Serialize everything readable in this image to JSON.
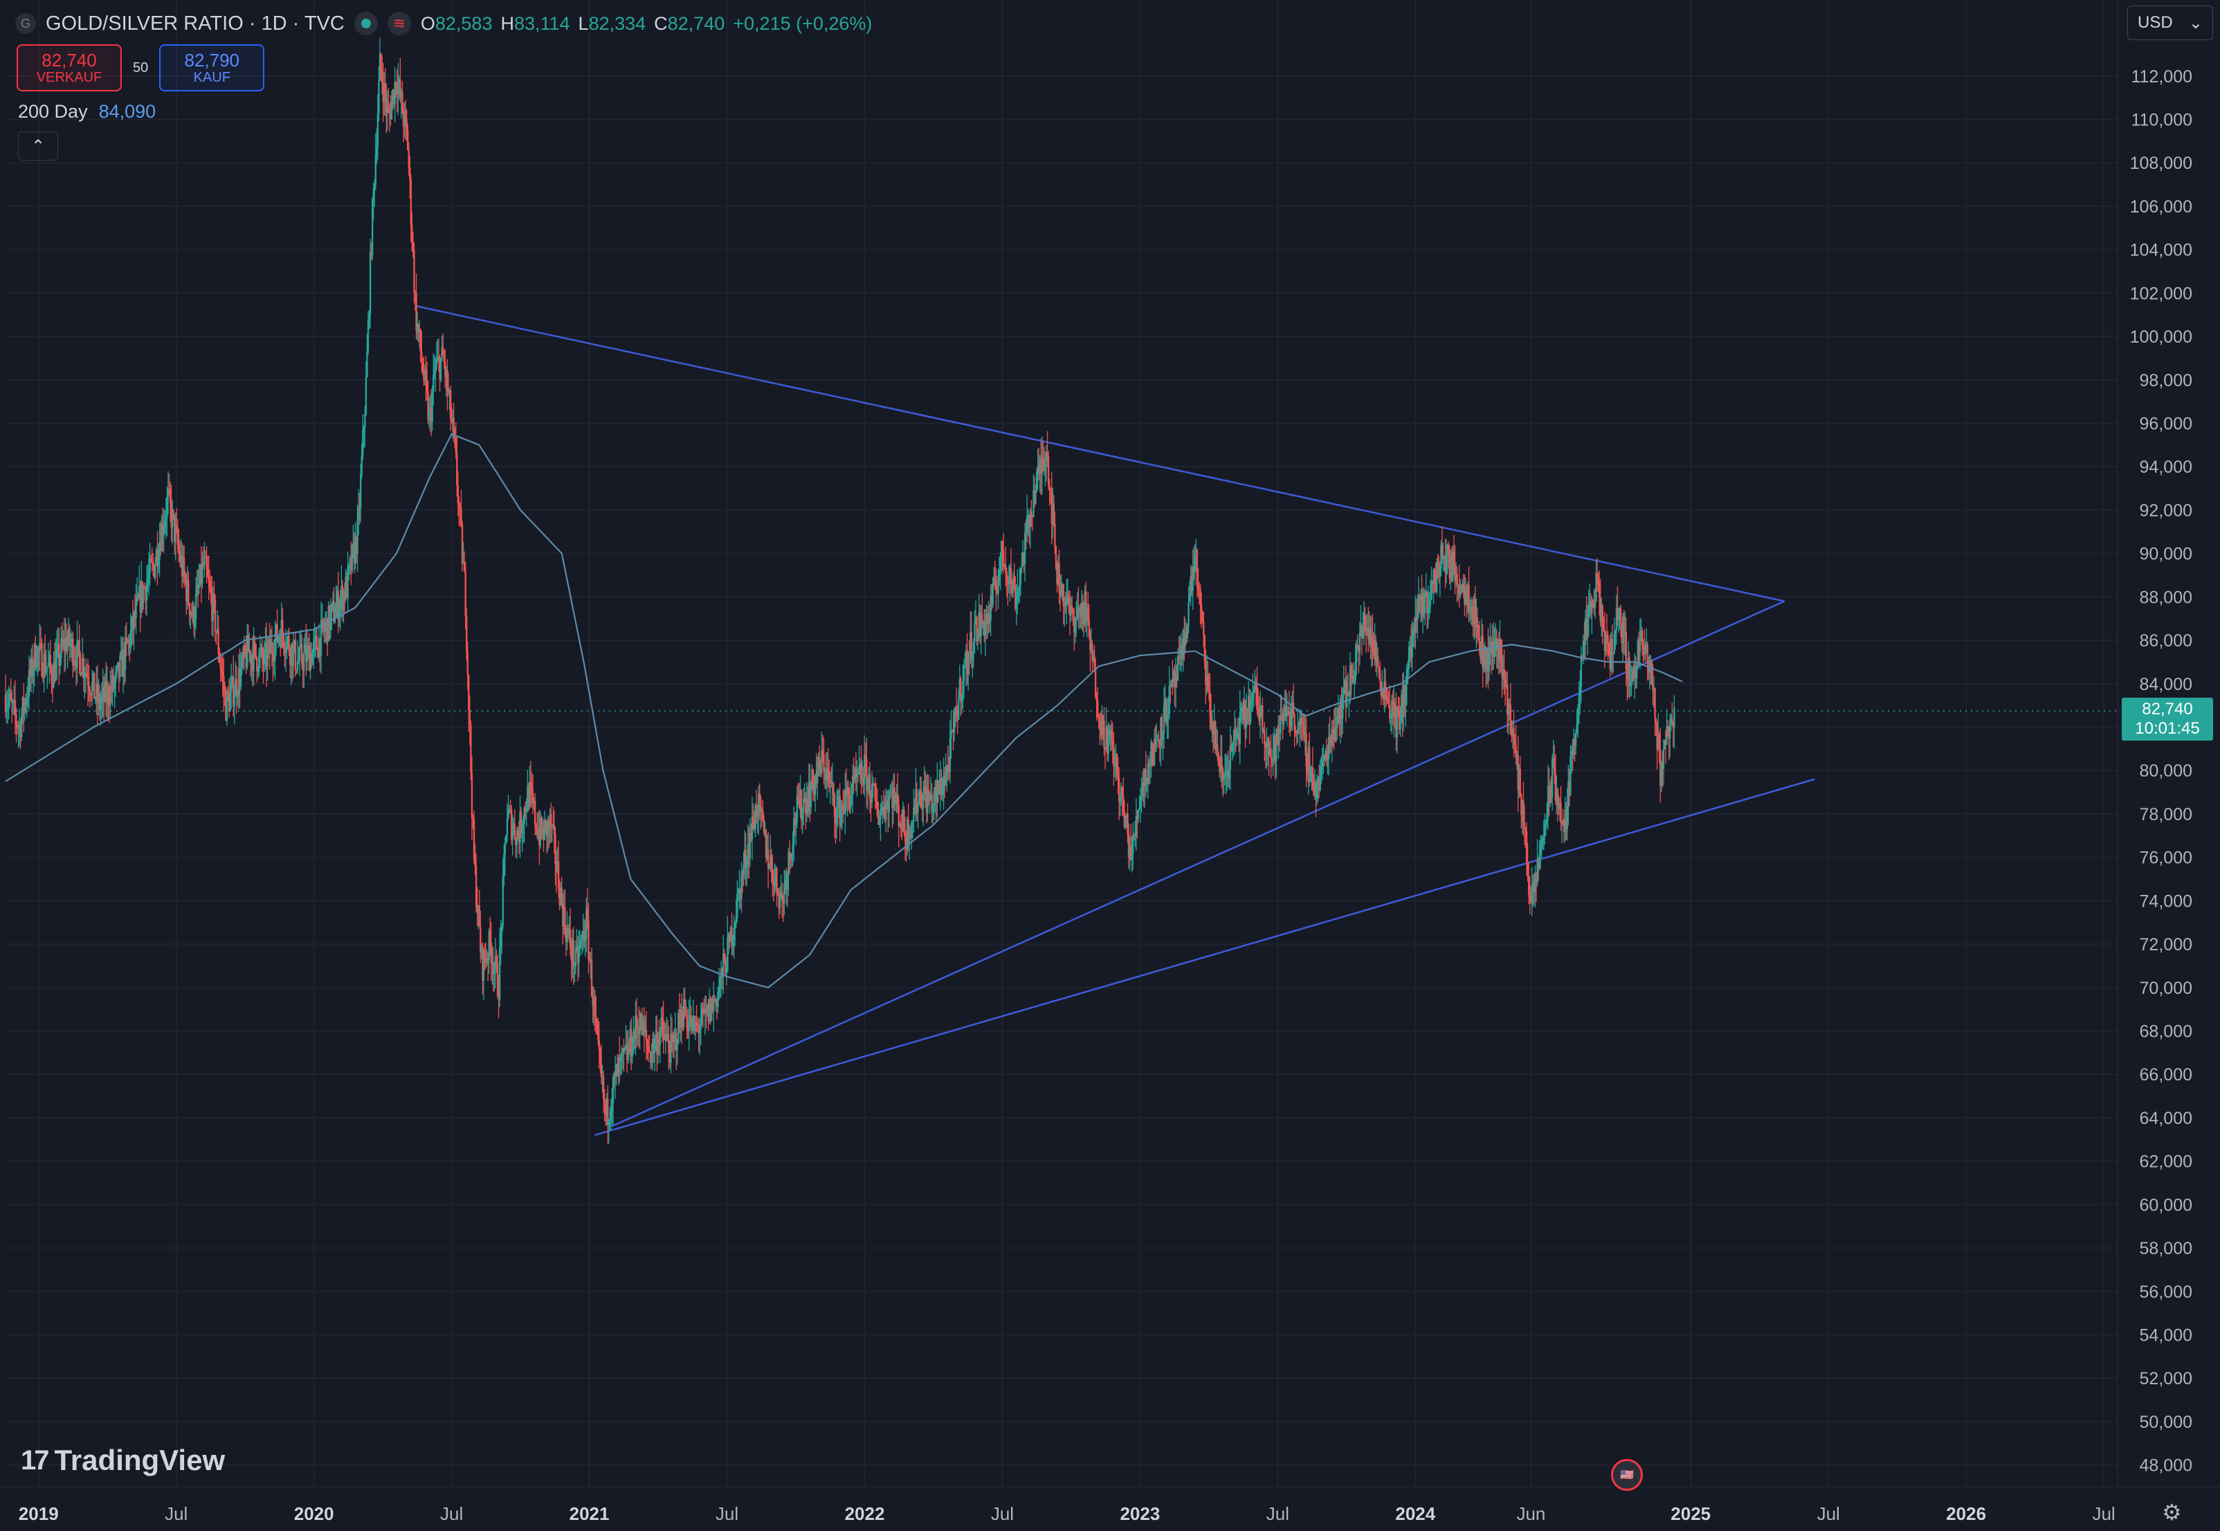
{
  "header": {
    "symbol_icon": "G",
    "title": "GOLD/SILVER RATIO · 1D · TVC",
    "wave_icon": "≋",
    "ohlc": [
      {
        "label": "O",
        "value": "82,583"
      },
      {
        "label": "H",
        "value": "83,114"
      },
      {
        "label": "L",
        "value": "82,334"
      },
      {
        "label": "C",
        "value": "82,740"
      }
    ],
    "change": "+0,215 (+0,26%)"
  },
  "trade": {
    "sell_price": "82,740",
    "sell_label": "VERKAUF",
    "spread": "50",
    "buy_price": "82,790",
    "buy_label": "KAUF"
  },
  "indicator": {
    "label": "200 Day",
    "value": "84,090"
  },
  "currency": {
    "label": "USD",
    "icon": "chevron-down-icon"
  },
  "price_badge": {
    "price": "82,740",
    "countdown": "10:01:45"
  },
  "branding": {
    "logo_mark": "17",
    "logo_text": "TradingView"
  },
  "colors": {
    "background": "#161a25",
    "grid": "#222632",
    "up": "#26a69a",
    "down": "#ef5350",
    "ma": "#5d8aa8",
    "trendline": "#3f5bd9",
    "text": "#b2b5be"
  },
  "chart_data": {
    "type": "candlestick",
    "title": "GOLD/SILVER RATIO · 1D · TVC",
    "xlim": [
      2018.88,
      2026.55
    ],
    "ylim": [
      47,
      115.5
    ],
    "y_ticks": [
      48,
      50,
      52,
      54,
      56,
      58,
      60,
      62,
      64,
      66,
      68,
      70,
      72,
      74,
      76,
      78,
      80,
      82,
      84,
      86,
      88,
      90,
      92,
      94,
      96,
      98,
      100,
      102,
      104,
      106,
      108,
      110,
      112
    ],
    "y_tick_labels": [
      "48,000",
      "50,000",
      "52,000",
      "54,000",
      "56,000",
      "58,000",
      "60,000",
      "62,000",
      "64,000",
      "66,000",
      "68,000",
      "70,000",
      "72,000",
      "74,000",
      "76,000",
      "78,000",
      "80,000",
      "82,000",
      "84,000",
      "86,000",
      "88,000",
      "90,000",
      "92,000",
      "94,000",
      "96,000",
      "98,000",
      "100,000",
      "102,000",
      "104,000",
      "106,000",
      "108,000",
      "110,000",
      "112,000"
    ],
    "x_ticks": [
      {
        "x": 2019.0,
        "label": "2019",
        "major": true
      },
      {
        "x": 2019.5,
        "label": "Jul",
        "major": false
      },
      {
        "x": 2020.0,
        "label": "2020",
        "major": true
      },
      {
        "x": 2020.5,
        "label": "Jul",
        "major": false
      },
      {
        "x": 2021.0,
        "label": "2021",
        "major": true
      },
      {
        "x": 2021.5,
        "label": "Jul",
        "major": false
      },
      {
        "x": 2022.0,
        "label": "2022",
        "major": true
      },
      {
        "x": 2022.5,
        "label": "Jul",
        "major": false
      },
      {
        "x": 2023.0,
        "label": "2023",
        "major": true
      },
      {
        "x": 2023.5,
        "label": "Jul",
        "major": false
      },
      {
        "x": 2024.0,
        "label": "2024",
        "major": true
      },
      {
        "x": 2024.42,
        "label": "Jun",
        "major": false
      },
      {
        "x": 2025.0,
        "label": "2025",
        "major": true
      },
      {
        "x": 2025.5,
        "label": "Jul",
        "major": false
      },
      {
        "x": 2026.0,
        "label": "2026",
        "major": true
      },
      {
        "x": 2026.5,
        "label": "Jul",
        "major": false
      }
    ],
    "last_price": 82.74,
    "price_path": [
      [
        2018.88,
        83.5
      ],
      [
        2018.93,
        82.0
      ],
      [
        2018.99,
        85.5
      ],
      [
        2019.05,
        84.5
      ],
      [
        2019.1,
        86.0
      ],
      [
        2019.16,
        85.0
      ],
      [
        2019.22,
        83.0
      ],
      [
        2019.28,
        84.0
      ],
      [
        2019.33,
        86.0
      ],
      [
        2019.37,
        88.0
      ],
      [
        2019.42,
        89.5
      ],
      [
        2019.47,
        92.5
      ],
      [
        2019.51,
        90.0
      ],
      [
        2019.56,
        87.0
      ],
      [
        2019.6,
        89.5
      ],
      [
        2019.64,
        87.0
      ],
      [
        2019.68,
        83.0
      ],
      [
        2019.72,
        84.0
      ],
      [
        2019.76,
        85.5
      ],
      [
        2019.82,
        85.0
      ],
      [
        2019.88,
        86.5
      ],
      [
        2019.94,
        85.0
      ],
      [
        2020.0,
        85.5
      ],
      [
        2020.06,
        87.0
      ],
      [
        2020.12,
        88.5
      ],
      [
        2020.16,
        91.0
      ],
      [
        2020.19,
        98.0
      ],
      [
        2020.21,
        105.0
      ],
      [
        2020.24,
        112.5
      ],
      [
        2020.27,
        110.0
      ],
      [
        2020.3,
        112.0
      ],
      [
        2020.34,
        109.0
      ],
      [
        2020.37,
        101.0
      ],
      [
        2020.4,
        98.0
      ],
      [
        2020.42,
        96.0
      ],
      [
        2020.44,
        98.5
      ],
      [
        2020.47,
        99.0
      ],
      [
        2020.51,
        95.0
      ],
      [
        2020.55,
        88.0
      ],
      [
        2020.58,
        76.0
      ],
      [
        2020.61,
        71.0
      ],
      [
        2020.64,
        72.0
      ],
      [
        2020.67,
        70.0
      ],
      [
        2020.7,
        78.0
      ],
      [
        2020.74,
        77.0
      ],
      [
        2020.78,
        79.0
      ],
      [
        2020.82,
        77.0
      ],
      [
        2020.86,
        77.5
      ],
      [
        2020.91,
        73.0
      ],
      [
        2020.95,
        71.0
      ],
      [
        2020.99,
        73.0
      ],
      [
        2021.03,
        67.0
      ],
      [
        2021.06,
        64.0
      ],
      [
        2021.1,
        66.0
      ],
      [
        2021.14,
        67.0
      ],
      [
        2021.18,
        68.5
      ],
      [
        2021.22,
        67.0
      ],
      [
        2021.26,
        68.0
      ],
      [
        2021.3,
        67.0
      ],
      [
        2021.34,
        69.0
      ],
      [
        2021.38,
        68.0
      ],
      [
        2021.42,
        68.5
      ],
      [
        2021.46,
        69.5
      ],
      [
        2021.51,
        72.0
      ],
      [
        2021.56,
        75.5
      ],
      [
        2021.61,
        78.5
      ],
      [
        2021.65,
        76.0
      ],
      [
        2021.7,
        74.0
      ],
      [
        2021.75,
        78.0
      ],
      [
        2021.8,
        79.0
      ],
      [
        2021.85,
        80.5
      ],
      [
        2021.9,
        78.0
      ],
      [
        2021.95,
        79.0
      ],
      [
        2022.0,
        80.0
      ],
      [
        2022.05,
        78.0
      ],
      [
        2022.1,
        79.0
      ],
      [
        2022.15,
        77.0
      ],
      [
        2022.2,
        79.0
      ],
      [
        2022.25,
        78.5
      ],
      [
        2022.3,
        80.0
      ],
      [
        2022.35,
        84.0
      ],
      [
        2022.4,
        86.5
      ],
      [
        2022.45,
        87.0
      ],
      [
        2022.5,
        90.0
      ],
      [
        2022.55,
        88.0
      ],
      [
        2022.61,
        92.5
      ],
      [
        2022.66,
        95.0
      ],
      [
        2022.7,
        89.0
      ],
      [
        2022.75,
        87.0
      ],
      [
        2022.8,
        87.5
      ],
      [
        2022.86,
        82.0
      ],
      [
        2022.9,
        81.0
      ],
      [
        2022.94,
        78.0
      ],
      [
        2022.97,
        76.0
      ],
      [
        2023.0,
        79.0
      ],
      [
        2023.05,
        81.0
      ],
      [
        2023.1,
        83.0
      ],
      [
        2023.15,
        85.0
      ],
      [
        2023.2,
        90.0
      ],
      [
        2023.25,
        83.0
      ],
      [
        2023.3,
        79.5
      ],
      [
        2023.36,
        82.0
      ],
      [
        2023.42,
        83.5
      ],
      [
        2023.48,
        80.5
      ],
      [
        2023.53,
        83.0
      ],
      [
        2023.58,
        82.0
      ],
      [
        2023.64,
        79.0
      ],
      [
        2023.7,
        82.0
      ],
      [
        2023.76,
        84.0
      ],
      [
        2023.82,
        87.0
      ],
      [
        2023.88,
        84.0
      ],
      [
        2023.94,
        82.0
      ],
      [
        2024.0,
        87.0
      ],
      [
        2024.05,
        88.0
      ],
      [
        2024.1,
        90.0
      ],
      [
        2024.15,
        89.0
      ],
      [
        2024.2,
        88.0
      ],
      [
        2024.25,
        85.0
      ],
      [
        2024.3,
        86.0
      ],
      [
        2024.35,
        82.0
      ],
      [
        2024.4,
        77.0
      ],
      [
        2024.42,
        73.5
      ],
      [
        2024.45,
        76.0
      ],
      [
        2024.5,
        80.0
      ],
      [
        2024.54,
        77.0
      ],
      [
        2024.58,
        82.0
      ],
      [
        2024.62,
        86.5
      ],
      [
        2024.66,
        88.5
      ],
      [
        2024.7,
        85.0
      ],
      [
        2024.74,
        87.5
      ],
      [
        2024.78,
        84.0
      ],
      [
        2024.82,
        86.0
      ],
      [
        2024.86,
        84.0
      ],
      [
        2024.89,
        80.0
      ],
      [
        2024.91,
        81.5
      ],
      [
        2024.94,
        82.74
      ]
    ],
    "ma200": {
      "name": "200 Day",
      "points": [
        [
          2018.88,
          79.5
        ],
        [
          2019.2,
          82.0
        ],
        [
          2019.5,
          84.0
        ],
        [
          2019.75,
          86.0
        ],
        [
          2020.0,
          86.5
        ],
        [
          2020.15,
          87.5
        ],
        [
          2020.3,
          90.0
        ],
        [
          2020.42,
          93.5
        ],
        [
          2020.5,
          95.5
        ],
        [
          2020.6,
          95.0
        ],
        [
          2020.75,
          92.0
        ],
        [
          2020.9,
          90.0
        ],
        [
          2020.98,
          85.0
        ],
        [
          2021.05,
          80.0
        ],
        [
          2021.15,
          75.0
        ],
        [
          2021.3,
          72.5
        ],
        [
          2021.4,
          71.0
        ],
        [
          2021.5,
          70.5
        ],
        [
          2021.65,
          70.0
        ],
        [
          2021.8,
          71.5
        ],
        [
          2021.95,
          74.5
        ],
        [
          2022.1,
          76.0
        ],
        [
          2022.25,
          77.5
        ],
        [
          2022.4,
          79.5
        ],
        [
          2022.55,
          81.5
        ],
        [
          2022.7,
          83.0
        ],
        [
          2022.85,
          84.8
        ],
        [
          2023.0,
          85.3
        ],
        [
          2023.1,
          85.4
        ],
        [
          2023.2,
          85.5
        ],
        [
          2023.35,
          84.5
        ],
        [
          2023.5,
          83.5
        ],
        [
          2023.6,
          82.5
        ],
        [
          2023.7,
          83.0
        ],
        [
          2023.82,
          83.5
        ],
        [
          2023.95,
          84.0
        ],
        [
          2024.05,
          85.0
        ],
        [
          2024.2,
          85.5
        ],
        [
          2024.35,
          85.8
        ],
        [
          2024.5,
          85.5
        ],
        [
          2024.6,
          85.2
        ],
        [
          2024.7,
          85.0
        ],
        [
          2024.8,
          85.0
        ],
        [
          2024.9,
          84.5
        ],
        [
          2024.97,
          84.09
        ]
      ]
    },
    "trendlines": [
      {
        "name": "upper",
        "from": [
          2020.37,
          101.4
        ],
        "to": [
          2025.34,
          87.8
        ]
      },
      {
        "name": "rising-support",
        "from": [
          2021.08,
          63.6
        ],
        "to": [
          2025.34,
          87.8
        ]
      },
      {
        "name": "lower-support",
        "from": [
          2021.02,
          63.2
        ],
        "to": [
          2025.45,
          79.6
        ]
      }
    ]
  }
}
